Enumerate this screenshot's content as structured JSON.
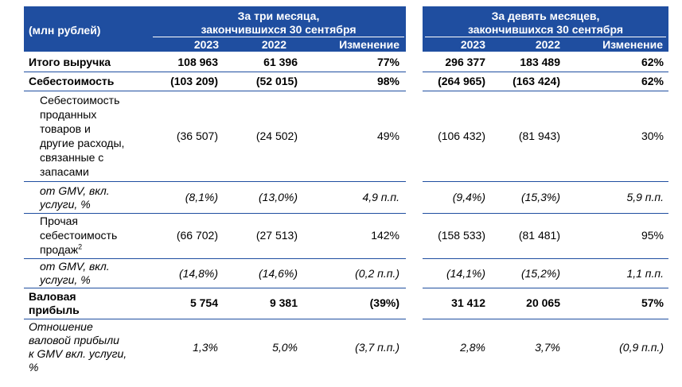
{
  "header": {
    "units_label": "(млн рублей)",
    "group1_title_line1": "За три месяца,",
    "group1_title_line2": "закончившихся 30 сентября",
    "group2_title_line1": "За девять месяцев,",
    "group2_title_line2": "закончившихся 30 сентября",
    "col_2023": "2023",
    "col_2022": "2022",
    "col_change": "Изменение"
  },
  "rows": [
    {
      "label": [
        "Итого выручка"
      ],
      "q": [
        "108 963",
        "61 396",
        "77%"
      ],
      "n": [
        "296 377",
        "183 489",
        "62%"
      ]
    },
    {
      "label": [
        "Себестоимость"
      ],
      "q": [
        "(103 209)",
        "(52 015)",
        "98%"
      ],
      "n": [
        "(264 965)",
        "(163 424)",
        "62%"
      ]
    },
    {
      "label": [
        "Себестоимость",
        "проданных",
        "товаров и",
        "другие расходы,",
        "связанные с",
        "запасами"
      ],
      "q": [
        "(36 507)",
        "(24 502)",
        "49%"
      ],
      "n": [
        "(106 432)",
        "(81 943)",
        "30%"
      ]
    },
    {
      "label": [
        "от GMV, вкл.",
        "услуги, %"
      ],
      "q": [
        "(8,1%)",
        "(13,0%)",
        "4,9 п.п."
      ],
      "n": [
        "(9,4%)",
        "(15,3%)",
        "5,9 п.п."
      ]
    },
    {
      "label": [
        "Прочая",
        "себестоимость",
        "продаж"
      ],
      "label_sup": "2",
      "q": [
        "(66 702)",
        "(27 513)",
        "142%"
      ],
      "n": [
        "(158 533)",
        "(81 481)",
        "95%"
      ]
    },
    {
      "label": [
        "от GMV, вкл.",
        "услуги, %"
      ],
      "q": [
        "(14,8%)",
        "(14,6%)",
        "(0,2 п.п.)"
      ],
      "n": [
        "(14,1%)",
        "(15,2%)",
        "1,1 п.п."
      ]
    },
    {
      "label": [
        "Валовая",
        "прибыль"
      ],
      "q": [
        "5 754",
        "9 381",
        "(39%)"
      ],
      "n": [
        "31 412",
        "20 065",
        "57%"
      ]
    },
    {
      "label": [
        "Отношение",
        "валовой прибыли",
        "к GMV вкл. услуги,",
        "%"
      ],
      "q": [
        "1,3%",
        "5,0%",
        "(3,7 п.п.)"
      ],
      "n": [
        "2,8%",
        "3,7%",
        "(0,9 п.п.)"
      ]
    }
  ],
  "colors": {
    "header_bg": "#1f4ea0",
    "header_text": "#ffffff",
    "rule": "#1f4ea0"
  }
}
